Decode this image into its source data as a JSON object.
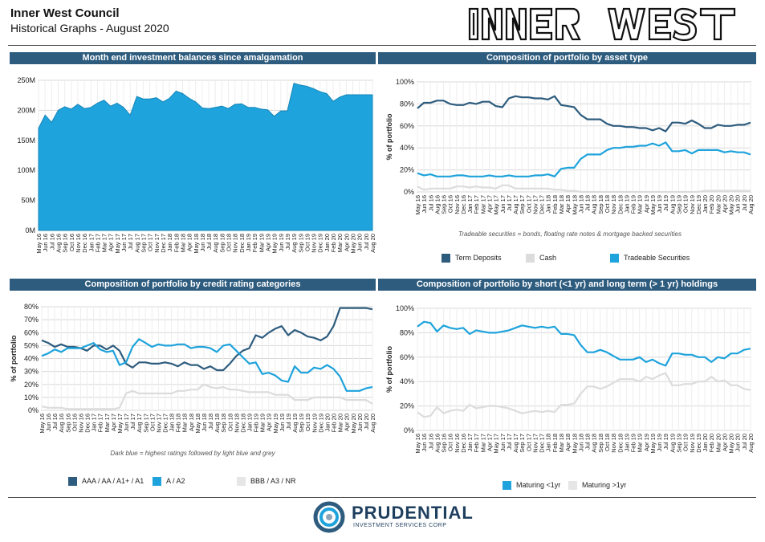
{
  "header": {
    "title": "Inner West Council",
    "subtitle": "Historical Graphs - August 2020",
    "logo_text": "INNER WEST"
  },
  "footer": {
    "company": "PRUDENTIAL",
    "company_sub": "INVESTMENT SERVICES CORP"
  },
  "months": [
    "May 16",
    "Jun 16",
    "Jul 16",
    "Aug 16",
    "Sep 16",
    "Oct 16",
    "Nov 16",
    "Dec 16",
    "Jan 17",
    "Feb 17",
    "Mar 17",
    "Apr 17",
    "May 17",
    "Jun 17",
    "Jul 17",
    "Aug 17",
    "Sep 17",
    "Oct 17",
    "Nov 17",
    "Dec 17",
    "Jan 18",
    "Feb 18",
    "Mar 18",
    "Apr 18",
    "May 18",
    "Jun 18",
    "Jul 18",
    "Aug 18",
    "Sep 18",
    "Oct 18",
    "Nov 18",
    "Dec 18",
    "Jan 19",
    "Feb 19",
    "Mar 19",
    "Apr 19",
    "May 19",
    "Jun 19",
    "Jul 19",
    "Aug 19",
    "Sep 19",
    "Oct 19",
    "Nov 19",
    "Dec 19",
    "Jan 20",
    "Feb 20",
    "Mar 20",
    "Apr 20",
    "May 20",
    "Jun 20",
    "Jul 20",
    "Aug 20"
  ],
  "chart_data": [
    {
      "type": "area",
      "title": "Month end investment balances since amalgamation",
      "xlabel": "",
      "ylabel": "",
      "ylim": [
        0,
        250000000
      ],
      "yticks": [
        0,
        50000000,
        100000000,
        150000000,
        200000000,
        250000000
      ],
      "ytick_labels": [
        "0M",
        "50M",
        "100M",
        "150M",
        "200M",
        "250M"
      ],
      "grid": true,
      "series": [
        {
          "name": "",
          "color": "#1ea3dc",
          "values": [
            170,
            192,
            180,
            200,
            206,
            202,
            210,
            203,
            205,
            212,
            217,
            207,
            212,
            205,
            192,
            223,
            219,
            219,
            221,
            214,
            220,
            232,
            228,
            220,
            214,
            204,
            203,
            205,
            207,
            203,
            210,
            211,
            205,
            205,
            202,
            201,
            190,
            199,
            199,
            245,
            242,
            240,
            236,
            231,
            228,
            215,
            222,
            226,
            226,
            226,
            226,
            226
          ]
        }
      ]
    },
    {
      "type": "line",
      "title": "Composition of portfolio by asset type",
      "ylabel": "% of portfolio",
      "ylim": [
        0,
        100
      ],
      "yticks": [
        0,
        20,
        40,
        60,
        80,
        100
      ],
      "ytick_labels": [
        "0%",
        "20%",
        "40%",
        "60%",
        "80%",
        "100%"
      ],
      "grid": true,
      "legend_position": "bottom",
      "note": "Tradeable securities = bonds, floating rate notes & mortgage backed securities",
      "series": [
        {
          "name": "Term Deposits",
          "color": "#2e5c7e",
          "values": [
            76,
            81,
            81,
            83,
            83,
            80,
            79,
            79,
            81,
            80,
            82,
            82,
            78,
            77,
            85,
            87,
            86,
            86,
            85,
            85,
            84,
            87,
            79,
            78,
            77,
            70,
            66,
            66,
            66,
            62,
            60,
            60,
            59,
            59,
            58,
            58,
            56,
            58,
            55,
            63,
            63,
            62,
            65,
            62,
            58,
            58,
            61,
            60,
            60,
            61,
            61,
            63
          ]
        },
        {
          "name": "Cash",
          "color": "#dcdcdc",
          "values": [
            5,
            2,
            3,
            3,
            3,
            3,
            5,
            5,
            4,
            5,
            4,
            4,
            3,
            6,
            6,
            3,
            3,
            3,
            3,
            3,
            3,
            2,
            2,
            1,
            1,
            0,
            0,
            0,
            0,
            0,
            0,
            0,
            0,
            0,
            0,
            0,
            0,
            0,
            0,
            0,
            0,
            0,
            0,
            0,
            1,
            1,
            1,
            1,
            1,
            1,
            1,
            1
          ]
        },
        {
          "name": "Tradeable Securities",
          "color": "#1ea3dc",
          "values": [
            17,
            15,
            16,
            14,
            14,
            14,
            15,
            15,
            14,
            14,
            14,
            15,
            14,
            14,
            15,
            14,
            14,
            14,
            15,
            15,
            16,
            14,
            21,
            22,
            22,
            30,
            34,
            34,
            34,
            38,
            40,
            40,
            41,
            41,
            42,
            42,
            44,
            42,
            45,
            37,
            37,
            38,
            35,
            38,
            38,
            38,
            38,
            36,
            37,
            36,
            36,
            34
          ]
        }
      ]
    },
    {
      "type": "line",
      "title": "Composition of portfolio by credit rating categories",
      "ylabel": "% of portfolio",
      "ylim": [
        0,
        80
      ],
      "yticks": [
        0,
        10,
        20,
        30,
        40,
        50,
        60,
        70,
        80
      ],
      "ytick_labels": [
        "0%",
        "10%",
        "20%",
        "30%",
        "40%",
        "50%",
        "60%",
        "70%",
        "80%"
      ],
      "grid": true,
      "legend_position": "bottom",
      "note": "Dark blue = highest ratings followed by light blue and grey",
      "series": [
        {
          "name": "AAA / AA / A1+ / A1",
          "color": "#2e5c7e",
          "values": [
            54,
            52,
            49,
            51,
            49,
            49,
            48,
            46,
            50,
            50,
            47,
            50,
            46,
            36,
            33,
            37,
            37,
            36,
            36,
            37,
            36,
            34,
            37,
            35,
            35,
            32,
            34,
            31,
            31,
            36,
            42,
            46,
            48,
            58,
            56,
            60,
            63,
            65,
            58,
            62,
            60,
            57,
            56,
            54,
            57,
            65,
            79,
            79,
            79,
            79,
            79,
            78
          ]
        },
        {
          "name": "A / A2",
          "color": "#1ea3dc",
          "values": [
            42,
            44,
            47,
            45,
            48,
            48,
            48,
            50,
            52,
            47,
            45,
            46,
            35,
            37,
            49,
            55,
            52,
            49,
            51,
            50,
            50,
            51,
            51,
            48,
            49,
            49,
            48,
            45,
            50,
            51,
            46,
            41,
            36,
            37,
            28,
            29,
            27,
            23,
            22,
            34,
            29,
            29,
            33,
            32,
            35,
            32,
            26,
            15,
            15,
            15,
            17,
            18
          ]
        },
        {
          "name": "BBB / A3 / NR",
          "color": "#dcdcdc",
          "values": [
            3,
            2,
            2,
            2,
            1,
            1,
            1,
            1,
            1,
            1,
            1,
            1,
            2,
            13,
            15,
            13,
            13,
            13,
            13,
            13,
            13,
            15,
            15,
            16,
            16,
            20,
            18,
            17,
            18,
            16,
            16,
            15,
            14,
            14,
            14,
            14,
            12,
            12,
            12,
            8,
            8,
            8,
            10,
            10,
            10,
            10,
            10,
            8,
            8,
            8,
            8,
            5
          ]
        }
      ]
    },
    {
      "type": "line",
      "title": "Composition of portfolio by short (<1 yr) and long term (> 1 yr) holdings",
      "ylabel": "% of portfolio",
      "ylim": [
        0,
        100
      ],
      "yticks": [
        0,
        20,
        40,
        60,
        80,
        100
      ],
      "ytick_labels": [
        "0%",
        "20%",
        "40%",
        "60%",
        "80%",
        "100%"
      ],
      "grid": true,
      "legend_position": "bottom",
      "series": [
        {
          "name": "Maturing <1yr",
          "color": "#1ea3dc",
          "values": [
            85,
            89,
            88,
            81,
            86,
            84,
            83,
            84,
            79,
            82,
            81,
            80,
            80,
            81,
            82,
            84,
            86,
            85,
            84,
            85,
            84,
            85,
            79,
            79,
            78,
            70,
            64,
            64,
            66,
            64,
            61,
            58,
            58,
            58,
            60,
            56,
            58,
            55,
            53,
            63,
            63,
            62,
            62,
            60,
            60,
            56,
            60,
            59,
            63,
            63,
            66,
            67
          ]
        },
        {
          "name": "Maturing >1yr",
          "color": "#dcdcdc",
          "values": [
            15,
            11,
            12,
            19,
            14,
            16,
            17,
            16,
            21,
            18,
            19,
            20,
            20,
            19,
            18,
            16,
            14,
            15,
            16,
            15,
            16,
            15,
            21,
            21,
            22,
            30,
            36,
            36,
            34,
            36,
            39,
            42,
            42,
            42,
            40,
            44,
            42,
            45,
            47,
            37,
            37,
            38,
            38,
            40,
            40,
            44,
            40,
            41,
            37,
            37,
            34,
            33
          ]
        }
      ]
    }
  ]
}
